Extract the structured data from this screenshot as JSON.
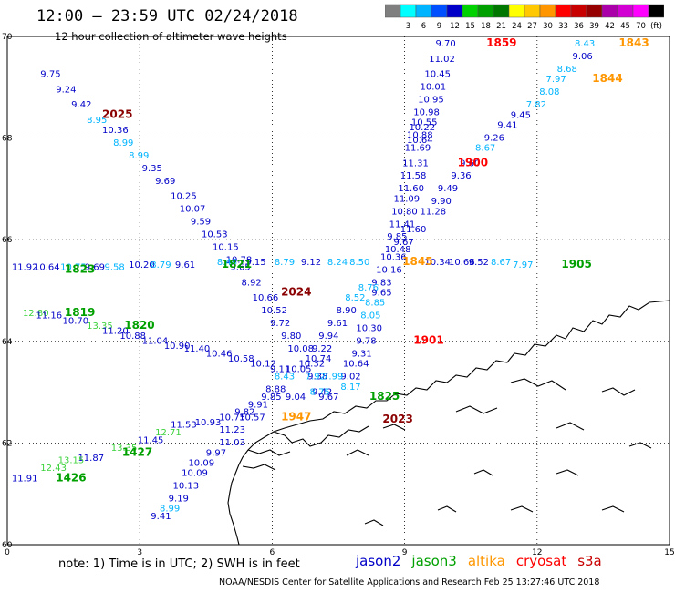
{
  "header": {
    "title": "12:00 – 23:59 UTC 02/24/2018",
    "subtitle": "12 hour collection of altimeter wave heights"
  },
  "color_scale": [
    {
      "label": "",
      "color": "#7f7f7f"
    },
    {
      "label": "3",
      "color": "#00ffff"
    },
    {
      "label": "6",
      "color": "#00b4ff"
    },
    {
      "label": "9",
      "color": "#0050ff"
    },
    {
      "label": "12",
      "color": "#0000c8"
    },
    {
      "label": "15",
      "color": "#00d200"
    },
    {
      "label": "18",
      "color": "#00a000"
    },
    {
      "label": "21",
      "color": "#007800"
    },
    {
      "label": "24",
      "color": "#ffff00"
    },
    {
      "label": "27",
      "color": "#ffc800"
    },
    {
      "label": "30",
      "color": "#ff9600"
    },
    {
      "label": "33",
      "color": "#ff0000"
    },
    {
      "label": "36",
      "color": "#c80000"
    },
    {
      "label": "39",
      "color": "#960000"
    },
    {
      "label": "42",
      "color": "#aa00aa"
    },
    {
      "label": "45",
      "color": "#d200d2"
    },
    {
      "label": "70",
      "color": "#ff00ff"
    },
    {
      "label": "(ft)",
      "color": "#000000"
    }
  ],
  "axes": {
    "x_ticks": [
      "0",
      "3",
      "6",
      "9",
      "12",
      "15"
    ],
    "y_ticks": [
      "70",
      "68",
      "66",
      "64",
      "62",
      "60"
    ]
  },
  "colors": {
    "jason2": "#0000c8",
    "jason3": "#00a000",
    "altika": "#ff9600",
    "cryosat": "#ff0000",
    "s3a": "#c80000",
    "cyan": "#00b4ff",
    "lgreen": "#3cd23c",
    "dred": "#8b0000"
  },
  "measurements": [
    {
      "v": "9.75",
      "lon": 0.75,
      "lat": 69.2,
      "c": "jason2"
    },
    {
      "v": "9.24",
      "lon": 1.1,
      "lat": 68.9,
      "c": "jason2"
    },
    {
      "v": "9.42",
      "lon": 1.45,
      "lat": 68.6,
      "c": "jason2"
    },
    {
      "v": "8.95",
      "lon": 1.8,
      "lat": 68.3,
      "c": "cyan"
    },
    {
      "v": "10.36",
      "lon": 2.15,
      "lat": 68.1,
      "c": "jason2"
    },
    {
      "v": "8.99",
      "lon": 2.4,
      "lat": 67.85,
      "c": "cyan"
    },
    {
      "v": "8.99",
      "lon": 2.75,
      "lat": 67.6,
      "c": "cyan"
    },
    {
      "v": "9.35",
      "lon": 3.05,
      "lat": 67.35,
      "c": "jason2"
    },
    {
      "v": "9.69",
      "lon": 3.35,
      "lat": 67.1,
      "c": "jason2"
    },
    {
      "v": "10.25",
      "lon": 3.7,
      "lat": 66.8,
      "c": "jason2"
    },
    {
      "v": "10.07",
      "lon": 3.9,
      "lat": 66.55,
      "c": "jason2"
    },
    {
      "v": "9.59",
      "lon": 4.15,
      "lat": 66.3,
      "c": "jason2"
    },
    {
      "v": "10.53",
      "lon": 4.4,
      "lat": 66.05,
      "c": "jason2"
    },
    {
      "v": "10.15",
      "lon": 4.65,
      "lat": 65.8,
      "c": "jason2"
    },
    {
      "v": "10.78",
      "lon": 4.95,
      "lat": 65.55,
      "c": "jason2"
    },
    {
      "v": "9.65",
      "lon": 5.05,
      "lat": 65.4,
      "c": "jason2"
    },
    {
      "v": "8.92",
      "lon": 5.3,
      "lat": 65.1,
      "c": "jason2"
    },
    {
      "v": "10.66",
      "lon": 5.55,
      "lat": 64.8,
      "c": "jason2"
    },
    {
      "v": "10.52",
      "lon": 5.75,
      "lat": 64.55,
      "c": "jason2"
    },
    {
      "v": "9.72",
      "lon": 5.95,
      "lat": 64.3,
      "c": "jason2"
    },
    {
      "v": "9.80",
      "lon": 6.2,
      "lat": 64.05,
      "c": "jason2"
    },
    {
      "v": "10.08",
      "lon": 6.35,
      "lat": 63.8,
      "c": "jason2"
    },
    {
      "v": "10.32",
      "lon": 6.6,
      "lat": 63.5,
      "c": "jason2"
    },
    {
      "v": "9.38",
      "lon": 6.8,
      "lat": 63.25,
      "c": "jason2"
    },
    {
      "v": "9.42",
      "lon": 6.9,
      "lat": 62.95,
      "c": "jason2"
    },
    {
      "v": "11.92",
      "lon": 0.1,
      "lat": 65.4,
      "c": "jason2"
    },
    {
      "v": "10.64",
      "lon": 0.6,
      "lat": 65.4,
      "c": "jason2"
    },
    {
      "v": "10.75",
      "lon": 1.2,
      "lat": 65.4,
      "c": "cyan"
    },
    {
      "v": "9.69",
      "lon": 1.75,
      "lat": 65.4,
      "c": "jason2"
    },
    {
      "v": "9.58",
      "lon": 2.2,
      "lat": 65.4,
      "c": "cyan"
    },
    {
      "v": "10.20",
      "lon": 2.75,
      "lat": 65.45,
      "c": "jason2"
    },
    {
      "v": "8.79",
      "lon": 3.25,
      "lat": 65.45,
      "c": "cyan"
    },
    {
      "v": "9.61",
      "lon": 3.8,
      "lat": 65.45,
      "c": "jason2"
    },
    {
      "v": "8.44",
      "lon": 4.75,
      "lat": 65.5,
      "c": "cyan"
    },
    {
      "v": "9.15",
      "lon": 5.4,
      "lat": 65.5,
      "c": "jason2"
    },
    {
      "v": "8.79",
      "lon": 6.05,
      "lat": 65.5,
      "c": "cyan"
    },
    {
      "v": "9.12",
      "lon": 6.65,
      "lat": 65.5,
      "c": "jason2"
    },
    {
      "v": "8.24",
      "lon": 7.25,
      "lat": 65.5,
      "c": "cyan"
    },
    {
      "v": "8.50",
      "lon": 7.75,
      "lat": 65.5,
      "c": "cyan"
    },
    {
      "v": "10.34",
      "lon": 9.45,
      "lat": 65.5,
      "c": "jason2"
    },
    {
      "v": "10.66",
      "lon": 10.0,
      "lat": 65.5,
      "c": "jason2"
    },
    {
      "v": "9.52",
      "lon": 10.45,
      "lat": 65.5,
      "c": "jason2"
    },
    {
      "v": "8.67",
      "lon": 10.95,
      "lat": 65.5,
      "c": "cyan"
    },
    {
      "v": "7.97",
      "lon": 11.45,
      "lat": 65.45,
      "c": "cyan"
    },
    {
      "v": "9.70",
      "lon": 9.7,
      "lat": 69.8,
      "c": "jason2"
    },
    {
      "v": "11.02",
      "lon": 9.55,
      "lat": 69.5,
      "c": "jason2"
    },
    {
      "v": "10.45",
      "lon": 9.45,
      "lat": 69.2,
      "c": "jason2"
    },
    {
      "v": "10.01",
      "lon": 9.35,
      "lat": 68.95,
      "c": "jason2"
    },
    {
      "v": "10.95",
      "lon": 9.3,
      "lat": 68.7,
      "c": "jason2"
    },
    {
      "v": "10.98",
      "lon": 9.2,
      "lat": 68.45,
      "c": "jason2"
    },
    {
      "v": "10.55",
      "lon": 9.15,
      "lat": 68.25,
      "c": "jason2"
    },
    {
      "v": "10.22",
      "lon": 9.1,
      "lat": 68.15,
      "c": "jason2"
    },
    {
      "v": "10.88",
      "lon": 9.05,
      "lat": 68.0,
      "c": "jason2"
    },
    {
      "v": "10.64",
      "lon": 9.05,
      "lat": 67.9,
      "c": "jason2"
    },
    {
      "v": "11.69",
      "lon": 9.0,
      "lat": 67.75,
      "c": "jason2"
    },
    {
      "v": "11.31",
      "lon": 8.95,
      "lat": 67.45,
      "c": "jason2"
    },
    {
      "v": "11.58",
      "lon": 8.9,
      "lat": 67.2,
      "c": "jason2"
    },
    {
      "v": "11.60",
      "lon": 8.85,
      "lat": 66.95,
      "c": "jason2"
    },
    {
      "v": "11.09",
      "lon": 8.75,
      "lat": 66.75,
      "c": "jason2"
    },
    {
      "v": "10.80",
      "lon": 8.7,
      "lat": 66.5,
      "c": "jason2"
    },
    {
      "v": "11.41",
      "lon": 8.65,
      "lat": 66.25,
      "c": "jason2"
    },
    {
      "v": "11.60",
      "lon": 8.9,
      "lat": 66.15,
      "c": "jason2"
    },
    {
      "v": "9.85",
      "lon": 8.6,
      "lat": 66.0,
      "c": "jason2"
    },
    {
      "v": "9.67",
      "lon": 8.75,
      "lat": 65.9,
      "c": "jason2"
    },
    {
      "v": "10.48",
      "lon": 8.55,
      "lat": 65.75,
      "c": "jason2"
    },
    {
      "v": "10.36",
      "lon": 8.45,
      "lat": 65.6,
      "c": "jason2"
    },
    {
      "v": "10.16",
      "lon": 8.35,
      "lat": 65.35,
      "c": "jason2"
    },
    {
      "v": "9.83",
      "lon": 8.25,
      "lat": 65.1,
      "c": "jason2"
    },
    {
      "v": "8.76",
      "lon": 7.95,
      "lat": 65.0,
      "c": "cyan"
    },
    {
      "v": "9.65",
      "lon": 8.25,
      "lat": 64.9,
      "c": "jason2"
    },
    {
      "v": "8.52",
      "lon": 7.65,
      "lat": 64.8,
      "c": "cyan"
    },
    {
      "v": "8.85",
      "lon": 8.1,
      "lat": 64.7,
      "c": "cyan"
    },
    {
      "v": "8.90",
      "lon": 7.45,
      "lat": 64.55,
      "c": "jason2"
    },
    {
      "v": "8.05",
      "lon": 8.0,
      "lat": 64.45,
      "c": "cyan"
    },
    {
      "v": "9.61",
      "lon": 7.25,
      "lat": 64.3,
      "c": "jason2"
    },
    {
      "v": "10.30",
      "lon": 7.9,
      "lat": 64.2,
      "c": "jason2"
    },
    {
      "v": "9.94",
      "lon": 7.05,
      "lat": 64.05,
      "c": "jason2"
    },
    {
      "v": "9.78",
      "lon": 7.9,
      "lat": 63.95,
      "c": "jason2"
    },
    {
      "v": "9.22",
      "lon": 6.9,
      "lat": 63.8,
      "c": "jason2"
    },
    {
      "v": "9.31",
      "lon": 7.8,
      "lat": 63.7,
      "c": "jason2"
    },
    {
      "v": "10.74",
      "lon": 6.75,
      "lat": 63.6,
      "c": "jason2"
    },
    {
      "v": "10.64",
      "lon": 7.6,
      "lat": 63.5,
      "c": "jason2"
    },
    {
      "v": "9.02",
      "lon": 7.55,
      "lat": 63.25,
      "c": "jason2"
    },
    {
      "v": "8.17",
      "lon": 7.55,
      "lat": 63.05,
      "c": "cyan"
    },
    {
      "v": "9.06",
      "lon": 12.8,
      "lat": 69.55,
      "c": "jason2"
    },
    {
      "v": "8.68",
      "lon": 12.45,
      "lat": 69.3,
      "c": "cyan"
    },
    {
      "v": "7.97",
      "lon": 12.2,
      "lat": 69.1,
      "c": "cyan"
    },
    {
      "v": "8.08",
      "lon": 12.05,
      "lat": 68.85,
      "c": "cyan"
    },
    {
      "v": "7.82",
      "lon": 11.75,
      "lat": 68.6,
      "c": "cyan"
    },
    {
      "v": "9.45",
      "lon": 11.4,
      "lat": 68.4,
      "c": "jason2"
    },
    {
      "v": "9.41",
      "lon": 11.1,
      "lat": 68.2,
      "c": "jason2"
    },
    {
      "v": "9.26",
      "lon": 10.8,
      "lat": 67.95,
      "c": "jason2"
    },
    {
      "v": "8.67",
      "lon": 10.6,
      "lat": 67.75,
      "c": "cyan"
    },
    {
      "v": "9.60",
      "lon": 10.25,
      "lat": 67.45,
      "c": "jason2"
    },
    {
      "v": "9.36",
      "lon": 10.05,
      "lat": 67.2,
      "c": "jason2"
    },
    {
      "v": "9.49",
      "lon": 9.75,
      "lat": 66.95,
      "c": "jason2"
    },
    {
      "v": "9.90",
      "lon": 9.6,
      "lat": 66.7,
      "c": "jason2"
    },
    {
      "v": "11.28",
      "lon": 9.35,
      "lat": 66.5,
      "c": "jason2"
    },
    {
      "v": "8.43",
      "lon": 12.85,
      "lat": 69.8,
      "c": "cyan"
    },
    {
      "v": "12.80",
      "lon": 0.35,
      "lat": 64.5,
      "c": "lgreen"
    },
    {
      "v": "11.16",
      "lon": 0.65,
      "lat": 64.45,
      "c": "jason2"
    },
    {
      "v": "10.70",
      "lon": 1.25,
      "lat": 64.35,
      "c": "jason2"
    },
    {
      "v": "13.35",
      "lon": 1.8,
      "lat": 64.25,
      "c": "lgreen"
    },
    {
      "v": "11.20",
      "lon": 2.15,
      "lat": 64.15,
      "c": "jason2"
    },
    {
      "v": "10.88",
      "lon": 2.55,
      "lat": 64.05,
      "c": "jason2"
    },
    {
      "v": "11.04",
      "lon": 3.05,
      "lat": 63.95,
      "c": "jason2"
    },
    {
      "v": "10.90",
      "lon": 3.55,
      "lat": 63.85,
      "c": "jason2"
    },
    {
      "v": "11.40",
      "lon": 4.0,
      "lat": 63.8,
      "c": "jason2"
    },
    {
      "v": "10.46",
      "lon": 4.5,
      "lat": 63.7,
      "c": "jason2"
    },
    {
      "v": "10.58",
      "lon": 5.0,
      "lat": 63.6,
      "c": "jason2"
    },
    {
      "v": "10.12",
      "lon": 5.5,
      "lat": 63.5,
      "c": "jason2"
    },
    {
      "v": "9.11",
      "lon": 5.95,
      "lat": 63.4,
      "c": "jason2"
    },
    {
      "v": "10.05",
      "lon": 6.3,
      "lat": 63.4,
      "c": "jason2"
    },
    {
      "v": "8.43",
      "lon": 6.05,
      "lat": 63.25,
      "c": "cyan"
    },
    {
      "v": "7.92",
      "lon": 6.75,
      "lat": 63.25,
      "c": "cyan"
    },
    {
      "v": "7.99",
      "lon": 7.15,
      "lat": 63.25,
      "c": "cyan"
    },
    {
      "v": "8.88",
      "lon": 5.85,
      "lat": 63.0,
      "c": "jason2"
    },
    {
      "v": "8.75",
      "lon": 6.85,
      "lat": 62.95,
      "c": "cyan"
    },
    {
      "v": "9.85",
      "lon": 5.75,
      "lat": 62.85,
      "c": "jason2"
    },
    {
      "v": "9.04",
      "lon": 6.3,
      "lat": 62.85,
      "c": "jason2"
    },
    {
      "v": "9.67",
      "lon": 7.05,
      "lat": 62.85,
      "c": "jason2"
    },
    {
      "v": "9.91",
      "lon": 5.45,
      "lat": 62.7,
      "c": "jason2"
    },
    {
      "v": "9.82",
      "lon": 5.15,
      "lat": 62.55,
      "c": "jason2"
    },
    {
      "v": "10.75",
      "lon": 4.8,
      "lat": 62.45,
      "c": "jason2"
    },
    {
      "v": "10.57",
      "lon": 5.25,
      "lat": 62.45,
      "c": "jason2"
    },
    {
      "v": "10.93",
      "lon": 4.25,
      "lat": 62.35,
      "c": "jason2"
    },
    {
      "v": "11.53",
      "lon": 3.7,
      "lat": 62.3,
      "c": "jason2"
    },
    {
      "v": "11.23",
      "lon": 4.8,
      "lat": 62.2,
      "c": "jason2"
    },
    {
      "v": "12.71",
      "lon": 3.35,
      "lat": 62.15,
      "c": "lgreen"
    },
    {
      "v": "11.45",
      "lon": 2.95,
      "lat": 62.0,
      "c": "jason2"
    },
    {
      "v": "11.03",
      "lon": 4.8,
      "lat": 61.95,
      "c": "jason2"
    },
    {
      "v": "13.35",
      "lon": 2.35,
      "lat": 61.85,
      "c": "lgreen"
    },
    {
      "v": "9.97",
      "lon": 4.5,
      "lat": 61.75,
      "c": "jason2"
    },
    {
      "v": "11.87",
      "lon": 1.6,
      "lat": 61.65,
      "c": "jason2"
    },
    {
      "v": "13.15",
      "lon": 1.15,
      "lat": 61.6,
      "c": "lgreen"
    },
    {
      "v": "10.09",
      "lon": 4.1,
      "lat": 61.55,
      "c": "jason2"
    },
    {
      "v": "12.43",
      "lon": 0.75,
      "lat": 61.45,
      "c": "lgreen"
    },
    {
      "v": "10.09",
      "lon": 3.95,
      "lat": 61.35,
      "c": "jason2"
    },
    {
      "v": "11.91",
      "lon": 0.1,
      "lat": 61.25,
      "c": "jason2"
    },
    {
      "v": "10.13",
      "lon": 3.75,
      "lat": 61.1,
      "c": "jason2"
    },
    {
      "v": "9.19",
      "lon": 3.65,
      "lat": 60.85,
      "c": "jason2"
    },
    {
      "v": "8.99",
      "lon": 3.45,
      "lat": 60.65,
      "c": "cyan"
    },
    {
      "v": "9.41",
      "lon": 3.25,
      "lat": 60.5,
      "c": "jason2"
    }
  ],
  "passes": [
    {
      "id": "1859",
      "lon": 10.85,
      "lat": 69.8,
      "c": "cryosat"
    },
    {
      "id": "1843",
      "lon": 13.85,
      "lat": 69.8,
      "c": "altika"
    },
    {
      "id": "1844",
      "lon": 13.25,
      "lat": 69.1,
      "c": "altika"
    },
    {
      "id": "2025",
      "lon": 2.15,
      "lat": 68.4,
      "c": "dred"
    },
    {
      "id": "1900",
      "lon": 10.2,
      "lat": 67.45,
      "c": "cryosat"
    },
    {
      "id": "1845",
      "lon": 8.95,
      "lat": 65.5,
      "c": "altika"
    },
    {
      "id": "1823",
      "lon": 1.3,
      "lat": 65.35,
      "c": "jason3"
    },
    {
      "id": "1821",
      "lon": 4.85,
      "lat": 65.45,
      "c": "jason3"
    },
    {
      "id": "1905",
      "lon": 12.55,
      "lat": 65.45,
      "c": "jason3"
    },
    {
      "id": "2024",
      "lon": 6.2,
      "lat": 64.9,
      "c": "dred"
    },
    {
      "id": "1901",
      "lon": 9.2,
      "lat": 63.95,
      "c": "cryosat"
    },
    {
      "id": "1819",
      "lon": 1.3,
      "lat": 64.5,
      "c": "jason3"
    },
    {
      "id": "1820",
      "lon": 2.65,
      "lat": 64.25,
      "c": "jason3"
    },
    {
      "id": "1825",
      "lon": 8.2,
      "lat": 62.85,
      "c": "jason3"
    },
    {
      "id": "1947",
      "lon": 6.2,
      "lat": 62.45,
      "c": "altika"
    },
    {
      "id": "2023",
      "lon": 8.5,
      "lat": 62.4,
      "c": "dred"
    },
    {
      "id": "1427",
      "lon": 2.6,
      "lat": 61.75,
      "c": "jason3"
    },
    {
      "id": "1426",
      "lon": 1.1,
      "lat": 61.25,
      "c": "jason3"
    }
  ],
  "footer": {
    "note": "note:  1) Time is in UTC;  2) SWH is in feet",
    "credit": "NOAA/NESDIS Center for Satellite Applications and Research     Feb 25 13:27:46 UTC 2018"
  },
  "legend": [
    {
      "label": "jason2",
      "c": "jason2"
    },
    {
      "label": "jason3",
      "c": "jason3"
    },
    {
      "label": "altika",
      "c": "altika"
    },
    {
      "label": "cryosat",
      "c": "cryosat"
    },
    {
      "label": "s3a",
      "c": "s3a"
    }
  ]
}
